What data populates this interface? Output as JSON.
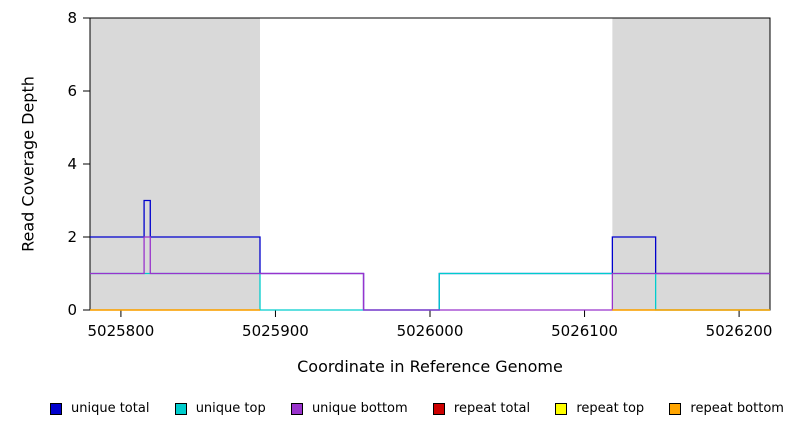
{
  "chart_data": {
    "type": "line",
    "title": "",
    "xlabel": "Coordinate in Reference Genome",
    "ylabel": "Read Coverage Depth",
    "xlim": [
      5025780,
      5026220
    ],
    "ylim": [
      0,
      8
    ],
    "grid": false,
    "legend_position": "bottom",
    "xticks": [
      {
        "value": 5025800,
        "label": "5025800"
      },
      {
        "value": 5025900,
        "label": "5025900"
      },
      {
        "value": 5026000,
        "label": "5026000"
      },
      {
        "value": 5026100,
        "label": "5026100"
      },
      {
        "value": 5026200,
        "label": "5026200"
      }
    ],
    "yticks": [
      0,
      2,
      4,
      6,
      8
    ],
    "shaded_regions": [
      {
        "from": 5025780,
        "to": 5025890,
        "color": "#d9d9d9"
      },
      {
        "from": 5026118,
        "to": 5026220,
        "color": "#d9d9d9"
      }
    ],
    "series": [
      {
        "name": "unique total",
        "color": "#0000CD",
        "parts": [
          {
            "end": 5026220,
            "steps": [
              {
                "x": 5025780,
                "y": 2
              },
              {
                "x": 5025815,
                "y": 3
              },
              {
                "x": 5025819,
                "y": 2
              },
              {
                "x": 5025890,
                "y": 1
              },
              {
                "x": 5025957,
                "y": 0
              },
              {
                "x": 5026006,
                "y": 1
              },
              {
                "x": 5026118,
                "y": 2
              },
              {
                "x": 5026146,
                "y": 1
              }
            ]
          }
        ]
      },
      {
        "name": "unique top",
        "color": "#00CDCD",
        "parts": [
          {
            "end": 5026220,
            "steps": [
              {
                "x": 5025780,
                "y": 1
              },
              {
                "x": 5025890,
                "y": 0
              },
              {
                "x": 5026006,
                "y": 1
              },
              {
                "x": 5026146,
                "y": 0
              }
            ]
          }
        ]
      },
      {
        "name": "unique bottom",
        "color": "#9933CC",
        "parts": [
          {
            "end": 5026220,
            "steps": [
              {
                "x": 5025780,
                "y": 1
              },
              {
                "x": 5025815,
                "y": 2
              },
              {
                "x": 5025819,
                "y": 1
              },
              {
                "x": 5025957,
                "y": 0
              },
              {
                "x": 5026118,
                "y": 1
              }
            ]
          }
        ]
      },
      {
        "name": "repeat total",
        "color": "#CC0000",
        "parts": [
          {
            "end": 5025890,
            "steps": [
              {
                "x": 5025780,
                "y": 0
              }
            ]
          },
          {
            "end": 5026220,
            "steps": [
              {
                "x": 5026118,
                "y": 0
              }
            ]
          }
        ]
      },
      {
        "name": "repeat top",
        "color": "#FFFF00",
        "parts": [
          {
            "end": 5025890,
            "steps": [
              {
                "x": 5025780,
                "y": 0
              }
            ]
          },
          {
            "end": 5026220,
            "steps": [
              {
                "x": 5026118,
                "y": 0
              }
            ]
          }
        ]
      },
      {
        "name": "repeat bottom",
        "color": "#FFA500",
        "parts": [
          {
            "end": 5025890,
            "steps": [
              {
                "x": 5025780,
                "y": 0
              }
            ]
          },
          {
            "end": 5026220,
            "steps": [
              {
                "x": 5026118,
                "y": 0
              }
            ]
          }
        ]
      }
    ],
    "legend": [
      {
        "label": "unique total",
        "color": "#0000CD"
      },
      {
        "label": "unique top",
        "color": "#00CDCD"
      },
      {
        "label": "unique bottom",
        "color": "#9933CC"
      },
      {
        "label": "repeat total",
        "color": "#CC0000"
      },
      {
        "label": "repeat top",
        "color": "#FFFF00"
      },
      {
        "label": "repeat bottom",
        "color": "#FFA500"
      }
    ]
  }
}
